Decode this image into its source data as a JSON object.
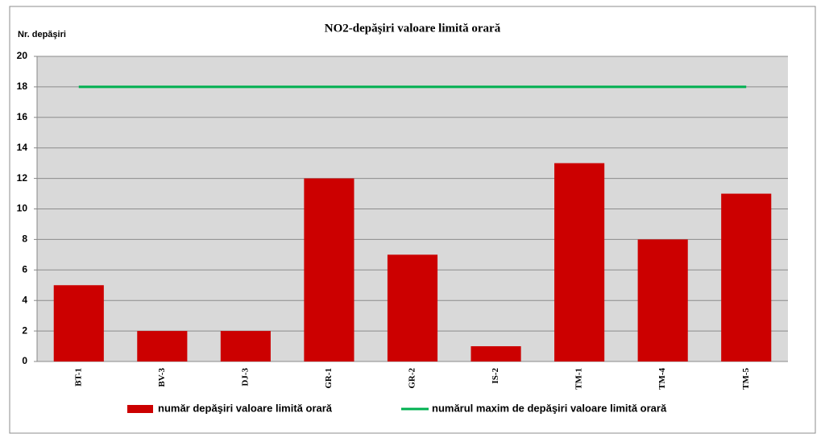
{
  "chart_data": {
    "type": "bar",
    "title": "NO2-depăşiri valoare limită orară",
    "y_label": "Nr. depăşiri",
    "categories": [
      "BT-1",
      "BV-3",
      "DJ-3",
      "GR-1",
      "GR-2",
      "IS-2",
      "TM-1",
      "TM-4",
      "TM-5"
    ],
    "series": [
      {
        "name": "număr depăşiri valoare limită orară",
        "color": "#cc0000",
        "type": "bar",
        "values": [
          5,
          2,
          2,
          12,
          7,
          1,
          13,
          8,
          11
        ]
      },
      {
        "name": "numărul maxim de depăşiri valoare limită orară",
        "color": "#00b050",
        "type": "line",
        "values": [
          18,
          18,
          18,
          18,
          18,
          18,
          18,
          18,
          18
        ]
      }
    ],
    "ylim": [
      0,
      20
    ],
    "yticks": [
      0,
      2,
      4,
      6,
      8,
      10,
      12,
      14,
      16,
      18,
      20
    ],
    "grid": true,
    "legend": "bottom"
  }
}
